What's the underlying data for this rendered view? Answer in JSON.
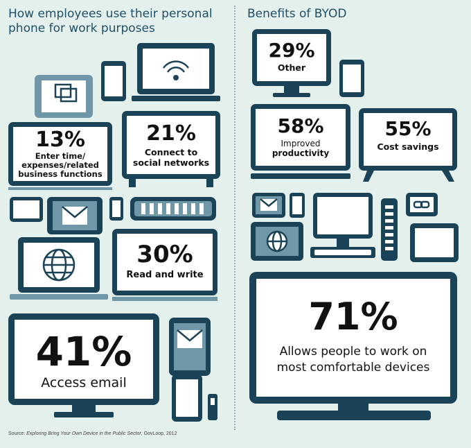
{
  "left_panel": {
    "title": "How employees use their personal phone for work purposes",
    "stats": [
      {
        "percent": "13%",
        "label_lines": [
          "Enter time/",
          "expenses/related",
          "business functions"
        ]
      },
      {
        "percent": "21%",
        "label_lines": [
          "Connect to",
          "social networks"
        ]
      },
      {
        "percent": "30%",
        "label_lines": [
          "Read and write"
        ]
      },
      {
        "percent": "41%",
        "label_lines": [
          "Access email"
        ]
      }
    ]
  },
  "right_panel": {
    "title": "Benefits of BYOD",
    "stats": [
      {
        "percent": "29%",
        "label_lines": [
          "Other"
        ]
      },
      {
        "percent": "58%",
        "label_lines": [
          "Improved",
          "productivity"
        ]
      },
      {
        "percent": "55%",
        "label_lines": [
          "Cost savings"
        ]
      },
      {
        "percent": "71%",
        "label_lines": [
          "Allows people to work on",
          "most comfortable devices"
        ]
      }
    ]
  },
  "source": {
    "prefix": "Source: ",
    "title": "Exploring Bring Your Own Device in the Public Sector",
    "suffix": ", GovLoop, 2012"
  },
  "colors": {
    "background": "#e4f0ec",
    "navy": "#1b4358",
    "frame_light": "#6f97a8",
    "screen": "#ffffff",
    "accent_text": "#1f4f68"
  }
}
